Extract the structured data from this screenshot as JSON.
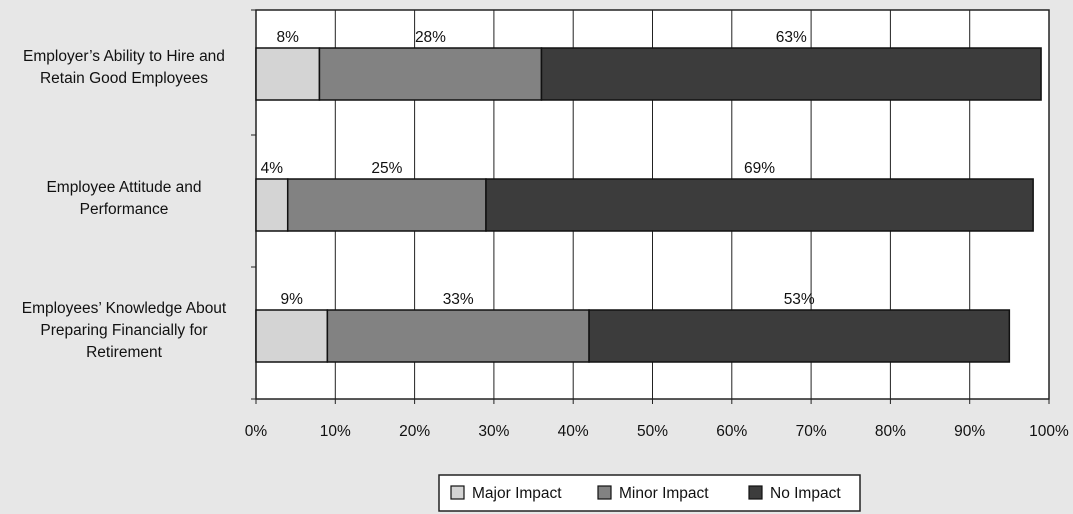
{
  "chart_data": {
    "type": "bar",
    "orientation": "horizontal",
    "stacked": true,
    "categories": [
      [
        "Employer’s Ability to Hire and",
        "Retain Good Employees"
      ],
      [
        "Employee Attitude and",
        "Performance"
      ],
      [
        "Employees’ Knowledge About",
        "Preparing Financially for",
        "Retirement"
      ]
    ],
    "series": [
      {
        "name": "Major Impact",
        "color": "#d4d4d4",
        "values": [
          8,
          4,
          9
        ],
        "labels": [
          "8%",
          "4%",
          "9%"
        ]
      },
      {
        "name": "Minor Impact",
        "color": "#828282",
        "values": [
          28,
          25,
          33
        ],
        "labels": [
          "28%",
          "25%",
          "33%"
        ]
      },
      {
        "name": "No Impact",
        "color": "#3c3c3c",
        "values": [
          63,
          69,
          53
        ],
        "labels": [
          "63%",
          "69%",
          "53%"
        ]
      }
    ],
    "xlim": [
      0,
      100
    ],
    "xticks": [
      "0%",
      "10%",
      "20%",
      "30%",
      "40%",
      "50%",
      "60%",
      "70%",
      "80%",
      "90%",
      "100%"
    ],
    "grid": true,
    "legend": "bottom-center",
    "title": "",
    "xlabel": "",
    "ylabel": ""
  }
}
